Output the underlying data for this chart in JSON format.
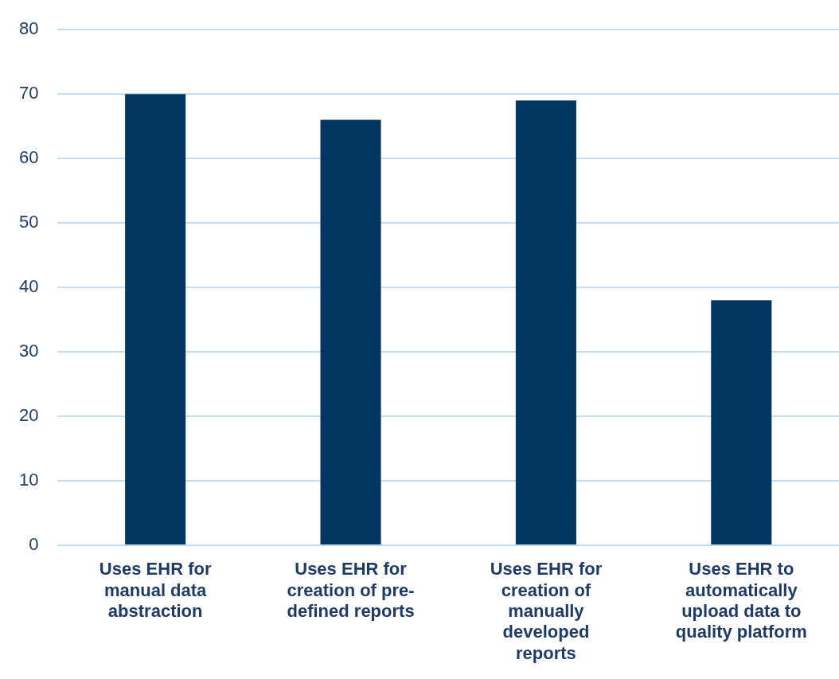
{
  "chart_data": {
    "type": "bar",
    "categories": [
      "Uses EHR for manual data abstraction",
      "Uses EHR for creation of pre-defined reports",
      "Uses EHR for creation of manually developed reports",
      "Uses EHR to automatically upload data to quality platform"
    ],
    "values": [
      70,
      66,
      69,
      38
    ],
    "color": "#003660",
    "ylim": [
      0,
      80
    ],
    "yticks": [
      0,
      10,
      20,
      30,
      40,
      50,
      60,
      70,
      80
    ],
    "grid": "y",
    "legend": false
  }
}
